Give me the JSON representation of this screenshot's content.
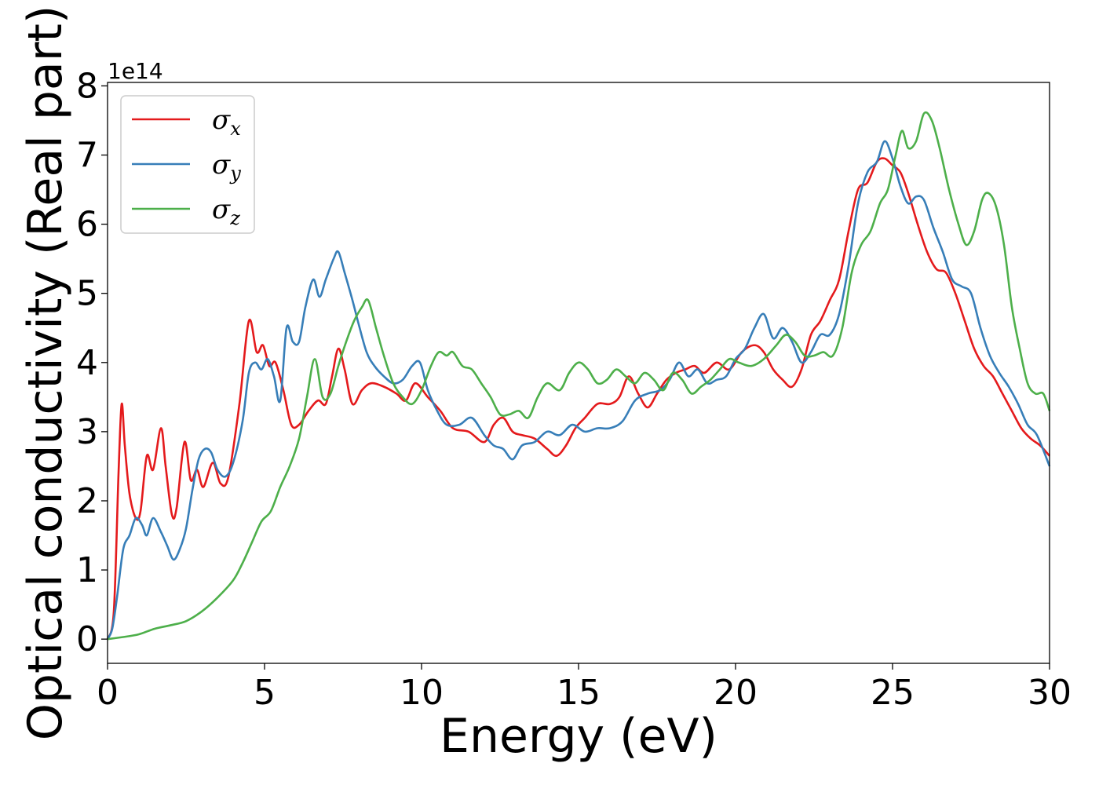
{
  "chart_data": {
    "type": "line",
    "xlabel": "Energy (eV)",
    "ylabel": "Optical conductivity (Real part)",
    "y_offset_text": "1e14",
    "xlim": [
      0,
      30
    ],
    "ylim": [
      -0.35,
      8.05
    ],
    "x_ticks": [
      "0",
      "5",
      "10",
      "15",
      "20",
      "25",
      "30"
    ],
    "y_ticks": [
      "0",
      "1",
      "2",
      "3",
      "4",
      "5",
      "6",
      "7",
      "8"
    ],
    "grid": false,
    "legend_position": "top-left",
    "series": [
      {
        "name": "σx",
        "symbol": "σ",
        "subscript": "x",
        "color": "#e41a1c",
        "points": [
          [
            0,
            0
          ],
          [
            0.2,
            0.4
          ],
          [
            0.35,
            2.4
          ],
          [
            0.45,
            3.4
          ],
          [
            0.55,
            2.8
          ],
          [
            0.7,
            2.1
          ],
          [
            0.9,
            1.75
          ],
          [
            1.05,
            1.85
          ],
          [
            1.25,
            2.65
          ],
          [
            1.45,
            2.45
          ],
          [
            1.7,
            3.05
          ],
          [
            1.85,
            2.5
          ],
          [
            2.05,
            1.8
          ],
          [
            2.2,
            1.9
          ],
          [
            2.45,
            2.85
          ],
          [
            2.65,
            2.3
          ],
          [
            2.85,
            2.45
          ],
          [
            3.05,
            2.2
          ],
          [
            3.35,
            2.55
          ],
          [
            3.6,
            2.25
          ],
          [
            3.85,
            2.35
          ],
          [
            4.2,
            3.4
          ],
          [
            4.5,
            4.6
          ],
          [
            4.75,
            4.15
          ],
          [
            4.95,
            4.25
          ],
          [
            5.15,
            3.95
          ],
          [
            5.35,
            4.0
          ],
          [
            5.6,
            3.6
          ],
          [
            5.85,
            3.1
          ],
          [
            6.1,
            3.1
          ],
          [
            6.4,
            3.3
          ],
          [
            6.7,
            3.45
          ],
          [
            6.95,
            3.4
          ],
          [
            7.15,
            3.8
          ],
          [
            7.35,
            4.2
          ],
          [
            7.55,
            3.9
          ],
          [
            7.8,
            3.4
          ],
          [
            8.1,
            3.6
          ],
          [
            8.4,
            3.7
          ],
          [
            8.8,
            3.65
          ],
          [
            9.2,
            3.55
          ],
          [
            9.5,
            3.45
          ],
          [
            9.8,
            3.7
          ],
          [
            10.2,
            3.5
          ],
          [
            10.6,
            3.3
          ],
          [
            11.0,
            3.05
          ],
          [
            11.5,
            3.0
          ],
          [
            12.0,
            2.85
          ],
          [
            12.3,
            3.1
          ],
          [
            12.6,
            3.2
          ],
          [
            12.9,
            3.0
          ],
          [
            13.2,
            2.95
          ],
          [
            13.6,
            2.9
          ],
          [
            14.0,
            2.75
          ],
          [
            14.3,
            2.65
          ],
          [
            14.6,
            2.8
          ],
          [
            14.9,
            3.05
          ],
          [
            15.2,
            3.2
          ],
          [
            15.6,
            3.4
          ],
          [
            16.0,
            3.4
          ],
          [
            16.3,
            3.5
          ],
          [
            16.6,
            3.8
          ],
          [
            16.9,
            3.55
          ],
          [
            17.2,
            3.35
          ],
          [
            17.5,
            3.55
          ],
          [
            17.8,
            3.75
          ],
          [
            18.1,
            3.85
          ],
          [
            18.4,
            3.9
          ],
          [
            18.7,
            3.95
          ],
          [
            19.0,
            3.85
          ],
          [
            19.4,
            4.0
          ],
          [
            19.8,
            3.9
          ],
          [
            20.2,
            4.15
          ],
          [
            20.6,
            4.25
          ],
          [
            20.9,
            4.15
          ],
          [
            21.2,
            3.9
          ],
          [
            21.5,
            3.75
          ],
          [
            21.8,
            3.65
          ],
          [
            22.1,
            3.9
          ],
          [
            22.4,
            4.4
          ],
          [
            22.7,
            4.6
          ],
          [
            23.0,
            4.9
          ],
          [
            23.3,
            5.2
          ],
          [
            23.6,
            5.9
          ],
          [
            23.9,
            6.5
          ],
          [
            24.2,
            6.6
          ],
          [
            24.5,
            6.9
          ],
          [
            24.75,
            6.95
          ],
          [
            25.0,
            6.85
          ],
          [
            25.25,
            6.75
          ],
          [
            25.5,
            6.45
          ],
          [
            25.8,
            6.0
          ],
          [
            26.1,
            5.6
          ],
          [
            26.4,
            5.35
          ],
          [
            26.7,
            5.3
          ],
          [
            27.0,
            5.0
          ],
          [
            27.3,
            4.6
          ],
          [
            27.6,
            4.2
          ],
          [
            27.9,
            3.95
          ],
          [
            28.2,
            3.8
          ],
          [
            28.5,
            3.55
          ],
          [
            28.8,
            3.3
          ],
          [
            29.1,
            3.05
          ],
          [
            29.4,
            2.9
          ],
          [
            29.7,
            2.8
          ],
          [
            30.0,
            2.65
          ]
        ]
      },
      {
        "name": "σy",
        "symbol": "σ",
        "subscript": "y",
        "color": "#377eb8",
        "points": [
          [
            0,
            0
          ],
          [
            0.15,
            0.15
          ],
          [
            0.3,
            0.6
          ],
          [
            0.5,
            1.3
          ],
          [
            0.7,
            1.5
          ],
          [
            0.9,
            1.75
          ],
          [
            1.1,
            1.65
          ],
          [
            1.25,
            1.5
          ],
          [
            1.45,
            1.75
          ],
          [
            1.7,
            1.55
          ],
          [
            1.9,
            1.35
          ],
          [
            2.1,
            1.15
          ],
          [
            2.3,
            1.3
          ],
          [
            2.5,
            1.6
          ],
          [
            2.7,
            2.15
          ],
          [
            2.9,
            2.6
          ],
          [
            3.1,
            2.75
          ],
          [
            3.3,
            2.7
          ],
          [
            3.5,
            2.45
          ],
          [
            3.75,
            2.35
          ],
          [
            4.0,
            2.55
          ],
          [
            4.3,
            3.15
          ],
          [
            4.5,
            3.85
          ],
          [
            4.7,
            4.0
          ],
          [
            4.9,
            3.9
          ],
          [
            5.1,
            4.05
          ],
          [
            5.3,
            3.8
          ],
          [
            5.5,
            3.45
          ],
          [
            5.7,
            4.5
          ],
          [
            5.9,
            4.3
          ],
          [
            6.1,
            4.3
          ],
          [
            6.3,
            4.8
          ],
          [
            6.55,
            5.2
          ],
          [
            6.75,
            4.95
          ],
          [
            6.95,
            5.2
          ],
          [
            7.2,
            5.5
          ],
          [
            7.35,
            5.6
          ],
          [
            7.55,
            5.3
          ],
          [
            7.8,
            4.9
          ],
          [
            8.0,
            4.55
          ],
          [
            8.25,
            4.15
          ],
          [
            8.5,
            3.95
          ],
          [
            8.8,
            3.8
          ],
          [
            9.1,
            3.7
          ],
          [
            9.4,
            3.75
          ],
          [
            9.7,
            3.95
          ],
          [
            9.95,
            4.0
          ],
          [
            10.2,
            3.6
          ],
          [
            10.5,
            3.3
          ],
          [
            10.8,
            3.1
          ],
          [
            11.2,
            3.1
          ],
          [
            11.6,
            3.2
          ],
          [
            12.0,
            2.95
          ],
          [
            12.3,
            2.8
          ],
          [
            12.6,
            2.75
          ],
          [
            12.9,
            2.6
          ],
          [
            13.2,
            2.8
          ],
          [
            13.6,
            2.85
          ],
          [
            14.0,
            3.0
          ],
          [
            14.4,
            2.95
          ],
          [
            14.8,
            3.1
          ],
          [
            15.2,
            3.0
          ],
          [
            15.6,
            3.05
          ],
          [
            16.0,
            3.05
          ],
          [
            16.4,
            3.15
          ],
          [
            16.8,
            3.45
          ],
          [
            17.2,
            3.55
          ],
          [
            17.6,
            3.6
          ],
          [
            17.9,
            3.75
          ],
          [
            18.2,
            4.0
          ],
          [
            18.5,
            3.8
          ],
          [
            18.8,
            3.9
          ],
          [
            19.1,
            3.7
          ],
          [
            19.4,
            3.75
          ],
          [
            19.7,
            3.8
          ],
          [
            20.0,
            4.05
          ],
          [
            20.3,
            4.2
          ],
          [
            20.6,
            4.5
          ],
          [
            20.9,
            4.7
          ],
          [
            21.2,
            4.35
          ],
          [
            21.5,
            4.5
          ],
          [
            21.8,
            4.3
          ],
          [
            22.1,
            4.0
          ],
          [
            22.4,
            4.15
          ],
          [
            22.7,
            4.4
          ],
          [
            23.0,
            4.4
          ],
          [
            23.3,
            4.7
          ],
          [
            23.6,
            5.4
          ],
          [
            23.9,
            6.3
          ],
          [
            24.2,
            6.75
          ],
          [
            24.5,
            6.9
          ],
          [
            24.75,
            7.2
          ],
          [
            25.0,
            6.95
          ],
          [
            25.25,
            6.55
          ],
          [
            25.5,
            6.3
          ],
          [
            25.75,
            6.4
          ],
          [
            26.0,
            6.35
          ],
          [
            26.3,
            5.95
          ],
          [
            26.6,
            5.6
          ],
          [
            26.9,
            5.2
          ],
          [
            27.2,
            5.1
          ],
          [
            27.5,
            5.0
          ],
          [
            27.8,
            4.5
          ],
          [
            28.1,
            4.1
          ],
          [
            28.4,
            3.85
          ],
          [
            28.7,
            3.65
          ],
          [
            29.0,
            3.4
          ],
          [
            29.3,
            3.1
          ],
          [
            29.6,
            2.95
          ],
          [
            30.0,
            2.5
          ]
        ]
      },
      {
        "name": "σz",
        "symbol": "σ",
        "subscript": "z",
        "color": "#4daf4a",
        "points": [
          [
            0,
            0
          ],
          [
            0.5,
            0.03
          ],
          [
            1.0,
            0.07
          ],
          [
            1.5,
            0.15
          ],
          [
            2.0,
            0.2
          ],
          [
            2.5,
            0.26
          ],
          [
            3.0,
            0.4
          ],
          [
            3.5,
            0.6
          ],
          [
            4.0,
            0.85
          ],
          [
            4.3,
            1.1
          ],
          [
            4.6,
            1.4
          ],
          [
            4.9,
            1.7
          ],
          [
            5.2,
            1.85
          ],
          [
            5.5,
            2.2
          ],
          [
            5.8,
            2.5
          ],
          [
            6.1,
            2.9
          ],
          [
            6.35,
            3.5
          ],
          [
            6.6,
            4.05
          ],
          [
            6.85,
            3.5
          ],
          [
            7.1,
            3.55
          ],
          [
            7.35,
            3.95
          ],
          [
            7.6,
            4.3
          ],
          [
            7.85,
            4.6
          ],
          [
            8.1,
            4.8
          ],
          [
            8.3,
            4.9
          ],
          [
            8.55,
            4.5
          ],
          [
            8.8,
            4.1
          ],
          [
            9.1,
            3.7
          ],
          [
            9.4,
            3.5
          ],
          [
            9.7,
            3.4
          ],
          [
            10.0,
            3.6
          ],
          [
            10.3,
            3.95
          ],
          [
            10.55,
            4.15
          ],
          [
            10.8,
            4.1
          ],
          [
            11.0,
            4.15
          ],
          [
            11.3,
            3.95
          ],
          [
            11.6,
            3.9
          ],
          [
            11.9,
            3.7
          ],
          [
            12.2,
            3.5
          ],
          [
            12.5,
            3.25
          ],
          [
            12.8,
            3.25
          ],
          [
            13.1,
            3.3
          ],
          [
            13.4,
            3.2
          ],
          [
            13.7,
            3.5
          ],
          [
            14.0,
            3.7
          ],
          [
            14.4,
            3.6
          ],
          [
            14.7,
            3.85
          ],
          [
            15.0,
            4.0
          ],
          [
            15.3,
            3.9
          ],
          [
            15.6,
            3.7
          ],
          [
            15.9,
            3.75
          ],
          [
            16.2,
            3.9
          ],
          [
            16.5,
            3.8
          ],
          [
            16.8,
            3.7
          ],
          [
            17.1,
            3.85
          ],
          [
            17.4,
            3.75
          ],
          [
            17.7,
            3.6
          ],
          [
            18.0,
            3.85
          ],
          [
            18.3,
            3.75
          ],
          [
            18.6,
            3.55
          ],
          [
            18.9,
            3.65
          ],
          [
            19.2,
            3.75
          ],
          [
            19.5,
            3.9
          ],
          [
            19.8,
            4.05
          ],
          [
            20.1,
            4.0
          ],
          [
            20.5,
            3.95
          ],
          [
            20.9,
            4.05
          ],
          [
            21.3,
            4.25
          ],
          [
            21.6,
            4.4
          ],
          [
            21.9,
            4.3
          ],
          [
            22.2,
            4.1
          ],
          [
            22.5,
            4.1
          ],
          [
            22.8,
            4.15
          ],
          [
            23.1,
            4.1
          ],
          [
            23.4,
            4.5
          ],
          [
            23.7,
            5.3
          ],
          [
            24.0,
            5.7
          ],
          [
            24.3,
            5.9
          ],
          [
            24.6,
            6.3
          ],
          [
            24.85,
            6.5
          ],
          [
            25.1,
            7.0
          ],
          [
            25.3,
            7.35
          ],
          [
            25.5,
            7.1
          ],
          [
            25.75,
            7.2
          ],
          [
            26.0,
            7.6
          ],
          [
            26.25,
            7.5
          ],
          [
            26.5,
            7.1
          ],
          [
            26.8,
            6.5
          ],
          [
            27.1,
            6.0
          ],
          [
            27.35,
            5.7
          ],
          [
            27.6,
            5.9
          ],
          [
            27.85,
            6.35
          ],
          [
            28.05,
            6.45
          ],
          [
            28.3,
            6.25
          ],
          [
            28.55,
            5.7
          ],
          [
            28.8,
            4.8
          ],
          [
            29.05,
            4.2
          ],
          [
            29.3,
            3.7
          ],
          [
            29.55,
            3.55
          ],
          [
            29.8,
            3.55
          ],
          [
            30.0,
            3.3
          ]
        ]
      }
    ]
  }
}
